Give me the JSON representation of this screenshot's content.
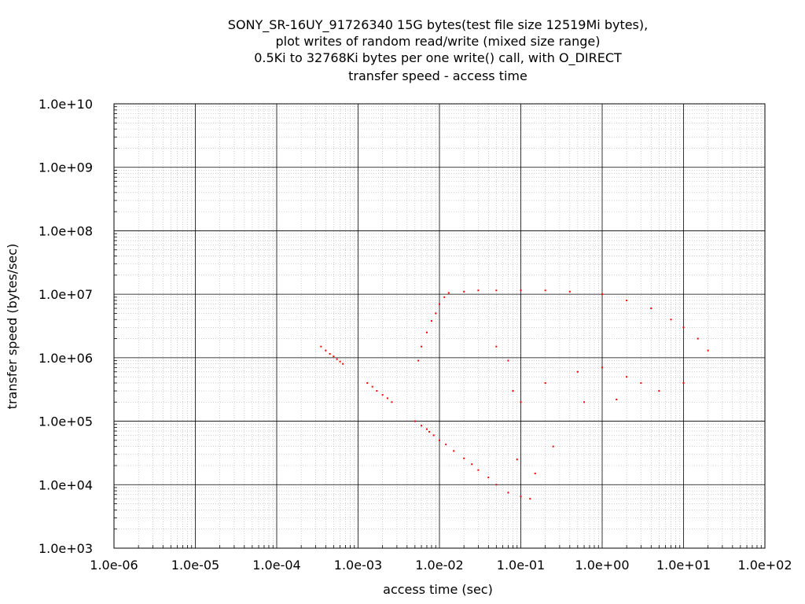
{
  "chart_data": {
    "type": "scatter",
    "title_lines": [
      "SONY_SR-16UY_91726340 15G bytes(test file size 12519Mi bytes),",
      "plot writes of random read/write (mixed size range)",
      "0.5Ki to 32768Ki bytes per one write() call, with O_DIRECT",
      "transfer speed - access time"
    ],
    "xlabel": "access time (sec)",
    "ylabel": "transfer speed (bytes/sec)",
    "x_scale": "log",
    "y_scale": "log",
    "xlim": [
      1e-06,
      100
    ],
    "ylim": [
      1000,
      10000000000.0
    ],
    "x_ticks": [
      {
        "value": 1e-06,
        "label": "1.0e-06"
      },
      {
        "value": 1e-05,
        "label": "1.0e-05"
      },
      {
        "value": 0.0001,
        "label": "1.0e-04"
      },
      {
        "value": 0.001,
        "label": "1.0e-03"
      },
      {
        "value": 0.01,
        "label": "1.0e-02"
      },
      {
        "value": 0.1,
        "label": "1.0e-01"
      },
      {
        "value": 1,
        "label": "1.0e+00"
      },
      {
        "value": 10,
        "label": "1.0e+01"
      },
      {
        "value": 100,
        "label": "1.0e+02"
      }
    ],
    "y_ticks": [
      {
        "value": 10000000000.0,
        "label": "1.0e+10"
      },
      {
        "value": 1000000000.0,
        "label": "1.0e+09"
      },
      {
        "value": 100000000.0,
        "label": "1.0e+08"
      },
      {
        "value": 10000000.0,
        "label": "1.0e+07"
      },
      {
        "value": 1000000.0,
        "label": "1.0e+06"
      },
      {
        "value": 100000.0,
        "label": "1.0e+05"
      },
      {
        "value": 10000.0,
        "label": "1.0e+04"
      },
      {
        "value": 1000.0,
        "label": "1.0e+03"
      }
    ],
    "grid": true,
    "minor_grid": true,
    "point_color": "#ff0000",
    "size_range_bytes": [
      512,
      33554432
    ],
    "series": [
      {
        "points": [
          [
            0.00035,
            1500000
          ],
          [
            0.0004,
            1300000
          ],
          [
            0.00045,
            1150000
          ],
          [
            0.0005,
            1050000
          ],
          [
            0.00055,
            950000
          ],
          [
            0.0006,
            870000
          ],
          [
            0.00065,
            800000
          ],
          [
            0.0013,
            400000
          ],
          [
            0.0015,
            350000
          ],
          [
            0.0017,
            300000
          ],
          [
            0.002,
            260000
          ],
          [
            0.0023,
            230000
          ],
          [
            0.0026,
            200000
          ],
          [
            0.005,
            100000
          ],
          [
            0.006,
            85000
          ],
          [
            0.007,
            75000
          ],
          [
            0.0075,
            68000
          ],
          [
            0.0085,
            60000
          ],
          [
            0.01,
            50000
          ],
          [
            0.012,
            43000
          ],
          [
            0.015,
            34000
          ],
          [
            0.02,
            26000
          ],
          [
            0.025,
            21000
          ],
          [
            0.03,
            17000
          ],
          [
            0.04,
            13000
          ],
          [
            0.05,
            10000
          ],
          [
            0.07,
            7500
          ],
          [
            0.1,
            6500
          ],
          [
            0.13,
            6000
          ],
          [
            0.0055,
            900000
          ],
          [
            0.006,
            1500000
          ],
          [
            0.007,
            2500000
          ],
          [
            0.008,
            3800000
          ],
          [
            0.009,
            5000000
          ],
          [
            0.01,
            7000000
          ],
          [
            0.0115,
            9000000
          ],
          [
            0.013,
            10500000
          ],
          [
            0.02,
            11000000
          ],
          [
            0.03,
            11500000
          ],
          [
            0.05,
            11500000
          ],
          [
            0.1,
            11500000
          ],
          [
            0.2,
            11500000
          ],
          [
            0.4,
            11000000
          ],
          [
            1,
            10000000
          ],
          [
            2,
            8000000
          ],
          [
            4,
            6000000
          ],
          [
            7,
            4000000
          ],
          [
            10,
            3000000
          ],
          [
            15,
            2000000
          ],
          [
            20,
            1300000
          ],
          [
            0.05,
            1500000
          ],
          [
            0.07,
            900000
          ],
          [
            0.08,
            300000
          ],
          [
            0.1,
            200000
          ],
          [
            0.2,
            400000
          ],
          [
            0.5,
            600000
          ],
          [
            1,
            700000
          ],
          [
            2,
            500000
          ],
          [
            3,
            400000
          ],
          [
            5,
            300000
          ],
          [
            10,
            400000
          ],
          [
            0.6,
            200000
          ],
          [
            1.5,
            220000
          ],
          [
            0.25,
            40000
          ],
          [
            0.15,
            15000
          ],
          [
            0.09,
            25000
          ]
        ]
      }
    ]
  }
}
